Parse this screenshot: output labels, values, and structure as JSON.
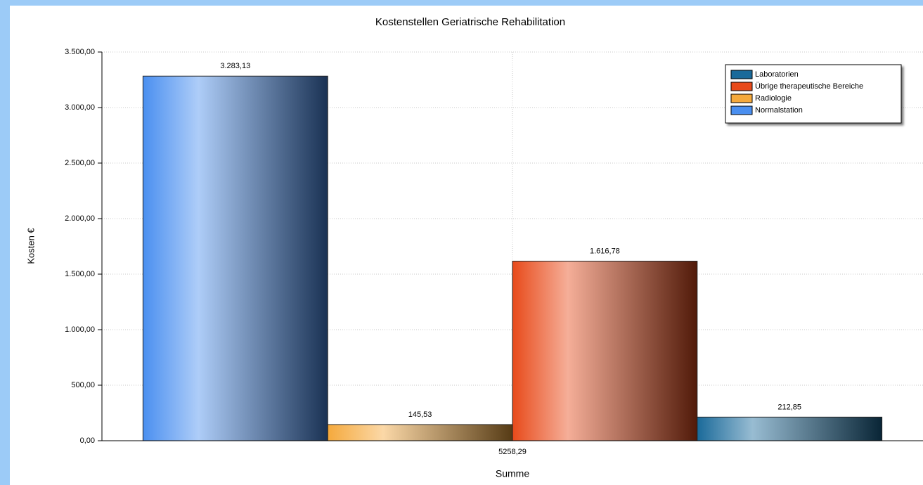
{
  "chart_data": {
    "type": "bar",
    "title": "Kostenstellen Geriatrische Rehabilitation",
    "x_label": "Summe",
    "y_label": "Kosten €",
    "categories": [
      "5258,29"
    ],
    "series": [
      {
        "name": "Normalstation",
        "color": "#4a8ff0",
        "values": [
          3283.13
        ],
        "value_labels": [
          "3.283,13"
        ]
      },
      {
        "name": "Radiologie",
        "color": "#f5a93c",
        "values": [
          145.53
        ],
        "value_labels": [
          "145,53"
        ]
      },
      {
        "name": "Übrige therapeutische Bereiche",
        "color": "#e84a1a",
        "values": [
          1616.78
        ],
        "value_labels": [
          "1.616,78"
        ]
      },
      {
        "name": "Laboratorien",
        "color": "#1a6a9a",
        "values": [
          212.85
        ],
        "value_labels": [
          "212,85"
        ]
      }
    ],
    "ylim": [
      0,
      3500
    ],
    "yticks": [
      {
        "value": 0,
        "label": "0,00"
      },
      {
        "value": 500,
        "label": "500,00"
      },
      {
        "value": 1000,
        "label": "1.000,00"
      },
      {
        "value": 1500,
        "label": "1.500,00"
      },
      {
        "value": 2000,
        "label": "2.000,00"
      },
      {
        "value": 2500,
        "label": "2.500,00"
      },
      {
        "value": 3000,
        "label": "3.000,00"
      },
      {
        "value": 3500,
        "label": "3.500,00"
      }
    ],
    "grid": true,
    "legend": "top-right"
  }
}
